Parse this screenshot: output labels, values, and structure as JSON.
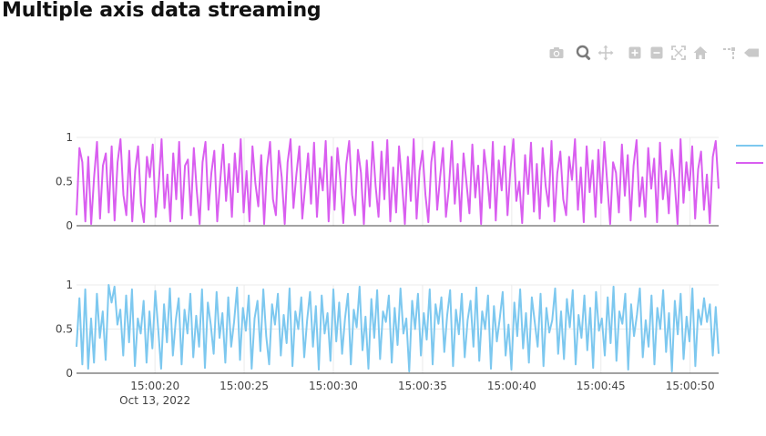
{
  "page": {
    "title": "Multiple axis data streaming"
  },
  "toolbar": {
    "buttons": [
      {
        "icon": "camera-icon",
        "label": "Download plot as a png"
      },
      {
        "icon": "zoom-icon",
        "label": "Zoom",
        "active": true
      },
      {
        "icon": "pan-icon",
        "label": "Pan"
      },
      {
        "icon": "zoom-in-icon",
        "label": "Zoom in"
      },
      {
        "icon": "zoom-out-icon",
        "label": "Zoom out"
      },
      {
        "icon": "autoscale-icon",
        "label": "Autoscale"
      },
      {
        "icon": "home-icon",
        "label": "Reset axes"
      },
      {
        "icon": "spike-lines-icon",
        "label": "Toggle Spike Lines"
      },
      {
        "icon": "hover-closest-icon",
        "label": "Show closest data on hover"
      }
    ],
    "colors": {
      "normal": "#c9c9c9",
      "active": "#7a7a7a"
    }
  },
  "chart_data": {
    "type": "line",
    "title": "Multiple axis data streaming",
    "x_range_seconds": [
      15.6,
      51.6
    ],
    "x_ticks": [
      {
        "seconds": 20,
        "label": "15:00:20",
        "sublabel": "Oct 13, 2022"
      },
      {
        "seconds": 25,
        "label": "15:00:25"
      },
      {
        "seconds": 30,
        "label": "15:00:30"
      },
      {
        "seconds": 35,
        "label": "15:00:35"
      },
      {
        "seconds": 40,
        "label": "15:00:40"
      },
      {
        "seconds": 45,
        "label": "15:00:45"
      },
      {
        "seconds": 50,
        "label": "15:00:50"
      }
    ],
    "y_ticks": [
      {
        "value": 0,
        "label": "0"
      },
      {
        "value": 0.5,
        "label": "0.5"
      },
      {
        "value": 1,
        "label": "1"
      }
    ],
    "legend": {
      "position": "top-right",
      "entries": [
        {
          "name": "",
          "color": "#7dc8ef"
        },
        {
          "name": "",
          "color": "#d95ef0"
        }
      ]
    },
    "series": [
      {
        "name": "",
        "color": "#d95ef0",
        "axis": "top",
        "y": [
          0.12,
          0.88,
          0.72,
          0.05,
          0.78,
          0.02,
          0.55,
          0.95,
          0.08,
          0.68,
          0.82,
          0.15,
          0.9,
          0.06,
          0.72,
          0.98,
          0.35,
          0.12,
          0.85,
          0.05,
          0.62,
          0.9,
          0.25,
          0.04,
          0.78,
          0.55,
          0.92,
          0.1,
          0.45,
          0.98,
          0.2,
          0.58,
          0.05,
          0.82,
          0.3,
          0.95,
          0.08,
          0.68,
          0.75,
          0.12,
          0.88,
          0.4,
          0.02,
          0.72,
          0.95,
          0.18,
          0.6,
          0.85,
          0.05,
          0.5,
          0.92,
          0.28,
          0.7,
          0.1,
          0.82,
          0.38,
          0.98,
          0.15,
          0.62,
          0.05,
          0.9,
          0.48,
          0.22,
          0.8,
          0.02,
          0.66,
          0.95,
          0.3,
          0.12,
          0.85,
          0.55,
          0.02,
          0.72,
          0.98,
          0.2,
          0.58,
          0.9,
          0.08,
          0.45,
          0.82,
          0.25,
          0.94,
          0.1,
          0.65,
          0.4,
          0.96,
          0.05,
          0.78,
          0.18,
          0.88,
          0.52,
          0.03,
          0.7,
          0.96,
          0.35,
          0.12,
          0.86,
          0.6,
          0.02,
          0.74,
          0.22,
          0.95,
          0.45,
          0.1,
          0.84,
          0.3,
          0.97,
          0.05,
          0.66,
          0.15,
          0.9,
          0.5,
          0.02,
          0.78,
          0.28,
          0.98,
          0.08,
          0.62,
          0.85,
          0.35,
          0.04,
          0.72,
          0.95,
          0.18,
          0.55,
          0.88,
          0.1,
          0.42,
          0.96,
          0.25,
          0.7,
          0.05,
          0.82,
          0.48,
          0.14,
          0.92,
          0.32,
          0.68,
          0.02,
          0.86,
          0.58,
          0.2,
          0.95,
          0.06,
          0.74,
          0.4,
          0.9,
          0.12,
          0.64,
          0.98,
          0.28,
          0.5,
          0.03,
          0.8,
          0.36,
          0.94,
          0.16,
          0.7,
          0.08,
          0.88,
          0.45,
          0.22,
          0.96,
          0.05,
          0.6,
          0.84,
          0.3,
          0.12,
          0.78,
          0.52,
          0.98,
          0.18,
          0.66,
          0.04,
          0.9,
          0.38,
          0.74,
          0.1,
          0.86,
          0.26,
          0.95,
          0.48,
          0.02,
          0.72,
          0.6,
          0.15,
          0.92,
          0.34,
          0.8,
          0.06,
          0.68,
          0.97,
          0.22,
          0.55,
          0.1,
          0.88,
          0.42,
          0.76,
          0.04,
          0.94,
          0.3,
          0.62,
          0.14,
          0.86,
          0.5,
          0.02,
          0.98,
          0.26,
          0.72,
          0.4,
          0.9,
          0.08,
          0.64,
          0.84,
          0.18,
          0.58,
          0.03,
          0.78,
          0.96,
          0.42
        ],
        "y_range": [
          0,
          1
        ]
      },
      {
        "name": "",
        "color": "#7dc8ef",
        "axis": "bottom",
        "y": [
          0.3,
          0.85,
          0.1,
          0.95,
          0.05,
          0.62,
          0.12,
          0.9,
          0.4,
          0.7,
          0.15,
          1.0,
          0.8,
          0.98,
          0.55,
          0.72,
          0.2,
          0.88,
          0.35,
          0.95,
          0.08,
          0.62,
          0.45,
          0.82,
          0.12,
          0.7,
          0.28,
          0.93,
          0.5,
          0.05,
          0.78,
          0.35,
          0.96,
          0.2,
          0.6,
          0.85,
          0.1,
          0.72,
          0.45,
          0.9,
          0.18,
          0.65,
          0.3,
          0.95,
          0.06,
          0.8,
          0.55,
          0.22,
          0.92,
          0.4,
          0.68,
          0.12,
          0.86,
          0.3,
          0.58,
          0.97,
          0.15,
          0.74,
          0.48,
          0.88,
          0.05,
          0.62,
          0.82,
          0.25,
          0.95,
          0.42,
          0.1,
          0.78,
          0.55,
          0.9,
          0.2,
          0.66,
          0.34,
          0.96,
          0.08,
          0.7,
          0.5,
          0.86,
          0.18,
          0.6,
          0.92,
          0.3,
          0.76,
          0.04,
          0.88,
          0.45,
          0.68,
          0.14,
          0.95,
          0.36,
          0.8,
          0.22,
          0.62,
          0.9,
          0.1,
          0.72,
          0.52,
          0.98,
          0.26,
          0.64,
          0.05,
          0.84,
          0.4,
          0.94,
          0.16,
          0.7,
          0.58,
          0.88,
          0.12,
          0.74,
          0.32,
          0.96,
          0.45,
          0.62,
          0.02,
          0.82,
          0.5,
          0.9,
          0.2,
          0.68,
          0.38,
          0.95,
          0.1,
          0.78,
          0.56,
          0.86,
          0.24,
          0.66,
          0.94,
          0.08,
          0.72,
          0.44,
          0.9,
          0.18,
          0.6,
          0.82,
          0.3,
          0.97,
          0.14,
          0.7,
          0.5,
          0.88,
          0.05,
          0.76,
          0.36,
          0.62,
          0.92,
          0.2,
          0.55,
          0.04,
          0.8,
          0.42,
          0.95,
          0.28,
          0.68,
          0.12,
          0.86,
          0.58,
          0.3,
          0.9,
          0.08,
          0.74,
          0.46,
          0.6,
          0.96,
          0.22,
          0.7,
          0.16,
          0.84,
          0.52,
          0.94,
          0.1,
          0.66,
          0.4,
          0.88,
          0.26,
          0.74,
          0.06,
          0.92,
          0.48,
          0.62,
          0.2,
          0.86,
          0.34,
          0.98,
          0.14,
          0.7,
          0.56,
          0.9,
          0.04,
          0.78,
          0.42,
          0.66,
          0.96,
          0.18,
          0.6,
          0.3,
          0.88,
          0.1,
          0.74,
          0.5,
          0.94,
          0.24,
          0.68,
          0.02,
          0.82,
          0.44,
          0.9,
          0.16,
          0.64,
          0.36,
          0.96,
          0.08,
          0.72,
          0.55,
          0.85,
          0.58,
          0.78,
          0.2,
          0.75,
          0.22
        ],
        "y_range": [
          0,
          1
        ]
      }
    ]
  }
}
